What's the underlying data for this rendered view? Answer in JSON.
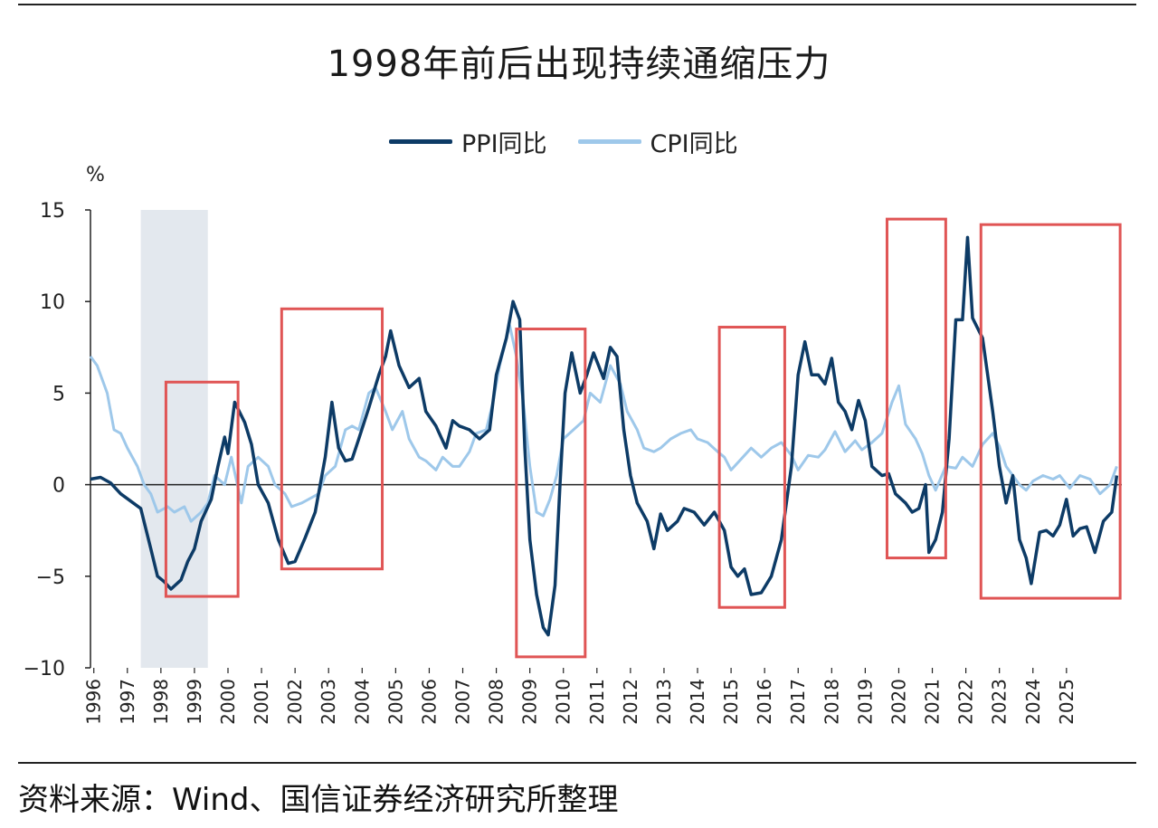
{
  "chart_data": {
    "type": "line",
    "title": "1998年前后出现持续通缩压力",
    "ylabel": "%",
    "ylim": [
      -10,
      15
    ],
    "yticks": [
      15,
      10,
      5,
      0,
      -5,
      -10
    ],
    "ytick_labels": [
      "15",
      "10",
      "5",
      "0",
      "−5",
      "−10"
    ],
    "x_range": [
      1996,
      2026
    ],
    "x_tick_labels": [
      "1996",
      "1997",
      "1998",
      "1999",
      "2000",
      "2001",
      "2002",
      "2003",
      "2004",
      "2005",
      "2006",
      "2007",
      "2008",
      "2009",
      "2010",
      "2011",
      "2012",
      "2013",
      "2014",
      "2015",
      "2016",
      "2017",
      "2018",
      "2019",
      "2020",
      "2021",
      "2022",
      "2023",
      "2024",
      "2025"
    ],
    "legend_position": "top-center",
    "series": [
      {
        "name": "PPI同比",
        "color": "#0d3b66",
        "points": [
          [
            1996.0,
            0.3
          ],
          [
            1996.3,
            0.4
          ],
          [
            1996.6,
            0.1
          ],
          [
            1996.9,
            -0.5
          ],
          [
            1997.2,
            -0.9
          ],
          [
            1997.5,
            -1.3
          ],
          [
            1997.8,
            -3.5
          ],
          [
            1998.0,
            -5.0
          ],
          [
            1998.2,
            -5.3
          ],
          [
            1998.4,
            -5.7
          ],
          [
            1998.7,
            -5.2
          ],
          [
            1998.9,
            -4.2
          ],
          [
            1999.1,
            -3.5
          ],
          [
            1999.3,
            -2.0
          ],
          [
            1999.6,
            -0.8
          ],
          [
            1999.8,
            1.0
          ],
          [
            2000.0,
            2.6
          ],
          [
            2000.1,
            1.7
          ],
          [
            2000.3,
            4.5
          ],
          [
            2000.6,
            3.4
          ],
          [
            2000.8,
            2.2
          ],
          [
            2001.0,
            0.0
          ],
          [
            2001.3,
            -1.0
          ],
          [
            2001.6,
            -3.0
          ],
          [
            2001.9,
            -4.3
          ],
          [
            2002.1,
            -4.2
          ],
          [
            2002.4,
            -2.9
          ],
          [
            2002.7,
            -1.5
          ],
          [
            2003.0,
            1.5
          ],
          [
            2003.2,
            4.5
          ],
          [
            2003.4,
            2.0
          ],
          [
            2003.6,
            1.3
          ],
          [
            2003.8,
            1.4
          ],
          [
            2004.0,
            2.5
          ],
          [
            2004.3,
            4.2
          ],
          [
            2004.6,
            6.0
          ],
          [
            2004.8,
            7.0
          ],
          [
            2004.95,
            8.4
          ],
          [
            2005.2,
            6.5
          ],
          [
            2005.5,
            5.3
          ],
          [
            2005.8,
            5.8
          ],
          [
            2006.0,
            4.0
          ],
          [
            2006.3,
            3.2
          ],
          [
            2006.6,
            2.0
          ],
          [
            2006.8,
            3.5
          ],
          [
            2007.0,
            3.2
          ],
          [
            2007.3,
            3.0
          ],
          [
            2007.6,
            2.5
          ],
          [
            2007.9,
            3.0
          ],
          [
            2008.1,
            6.0
          ],
          [
            2008.4,
            8.0
          ],
          [
            2008.6,
            10.0
          ],
          [
            2008.8,
            9.0
          ],
          [
            2008.95,
            2.0
          ],
          [
            2009.1,
            -3.0
          ],
          [
            2009.3,
            -6.0
          ],
          [
            2009.5,
            -7.8
          ],
          [
            2009.65,
            -8.2
          ],
          [
            2009.85,
            -5.5
          ],
          [
            2010.0,
            0.0
          ],
          [
            2010.15,
            5.0
          ],
          [
            2010.35,
            7.2
          ],
          [
            2010.6,
            5.0
          ],
          [
            2010.8,
            6.0
          ],
          [
            2011.0,
            7.2
          ],
          [
            2011.3,
            5.8
          ],
          [
            2011.5,
            7.5
          ],
          [
            2011.7,
            7.0
          ],
          [
            2011.9,
            3.0
          ],
          [
            2012.1,
            0.5
          ],
          [
            2012.3,
            -1.0
          ],
          [
            2012.6,
            -2.0
          ],
          [
            2012.8,
            -3.5
          ],
          [
            2013.0,
            -1.6
          ],
          [
            2013.2,
            -2.5
          ],
          [
            2013.5,
            -2.0
          ],
          [
            2013.7,
            -1.3
          ],
          [
            2014.0,
            -1.5
          ],
          [
            2014.3,
            -2.2
          ],
          [
            2014.6,
            -1.5
          ],
          [
            2014.9,
            -2.5
          ],
          [
            2015.1,
            -4.5
          ],
          [
            2015.3,
            -5.0
          ],
          [
            2015.5,
            -4.6
          ],
          [
            2015.7,
            -6.0
          ],
          [
            2016.0,
            -5.9
          ],
          [
            2016.3,
            -5.0
          ],
          [
            2016.6,
            -3.0
          ],
          [
            2016.9,
            1.0
          ],
          [
            2017.1,
            6.0
          ],
          [
            2017.3,
            7.8
          ],
          [
            2017.5,
            6.0
          ],
          [
            2017.7,
            6.0
          ],
          [
            2017.9,
            5.5
          ],
          [
            2018.1,
            6.9
          ],
          [
            2018.3,
            4.5
          ],
          [
            2018.5,
            4.0
          ],
          [
            2018.7,
            3.0
          ],
          [
            2018.9,
            4.6
          ],
          [
            2019.1,
            3.5
          ],
          [
            2019.3,
            1.0
          ],
          [
            2019.6,
            0.5
          ],
          [
            2019.8,
            0.6
          ],
          [
            2020.0,
            -0.5
          ],
          [
            2020.3,
            -1.0
          ],
          [
            2020.5,
            -1.5
          ],
          [
            2020.7,
            -1.3
          ],
          [
            2020.9,
            0.0
          ],
          [
            2021.0,
            -3.7
          ],
          [
            2021.2,
            -3.0
          ],
          [
            2021.4,
            -1.5
          ],
          [
            2021.6,
            2.5
          ],
          [
            2021.8,
            9.0
          ],
          [
            2022.0,
            9.0
          ],
          [
            2022.15,
            13.5
          ],
          [
            2022.3,
            9.1
          ],
          [
            2022.6,
            8.0
          ],
          [
            2022.9,
            4.0
          ],
          [
            2023.1,
            1.0
          ],
          [
            2023.3,
            -1.0
          ],
          [
            2023.5,
            0.5
          ],
          [
            2023.7,
            -3.0
          ],
          [
            2023.9,
            -4.0
          ],
          [
            2024.05,
            -5.4
          ],
          [
            2024.3,
            -2.6
          ],
          [
            2024.5,
            -2.5
          ],
          [
            2024.7,
            -2.8
          ],
          [
            2024.9,
            -2.2
          ],
          [
            2025.1,
            -0.8
          ],
          [
            2025.3,
            -2.8
          ],
          [
            2025.5,
            -2.4
          ],
          [
            2025.7,
            -2.3
          ],
          [
            2025.95,
            -3.7
          ],
          [
            2026.2,
            -2.0
          ],
          [
            2026.45,
            -1.5
          ],
          [
            2026.6,
            0.5
          ]
        ]
      },
      {
        "name": "CPI同比",
        "color": "#9ec8ea",
        "points": [
          [
            1996.0,
            7.0
          ],
          [
            1996.2,
            6.5
          ],
          [
            1996.5,
            5.0
          ],
          [
            1996.7,
            3.0
          ],
          [
            1996.9,
            2.8
          ],
          [
            1997.1,
            2.0
          ],
          [
            1997.4,
            1.0
          ],
          [
            1997.6,
            0.0
          ],
          [
            1997.8,
            -0.5
          ],
          [
            1998.0,
            -1.5
          ],
          [
            1998.3,
            -1.2
          ],
          [
            1998.5,
            -1.5
          ],
          [
            1998.8,
            -1.2
          ],
          [
            1999.0,
            -2.0
          ],
          [
            1999.3,
            -1.5
          ],
          [
            1999.5,
            -1.0
          ],
          [
            1999.7,
            0.5
          ],
          [
            2000.0,
            0.0
          ],
          [
            2000.2,
            1.5
          ],
          [
            2000.5,
            -1.0
          ],
          [
            2000.7,
            1.0
          ],
          [
            2001.0,
            1.5
          ],
          [
            2001.3,
            1.0
          ],
          [
            2001.5,
            0.0
          ],
          [
            2001.8,
            -0.5
          ],
          [
            2002.0,
            -1.2
          ],
          [
            2002.3,
            -1.0
          ],
          [
            2002.5,
            -0.8
          ],
          [
            2002.8,
            -0.5
          ],
          [
            2003.0,
            0.5
          ],
          [
            2003.3,
            1.0
          ],
          [
            2003.6,
            3.0
          ],
          [
            2003.8,
            3.2
          ],
          [
            2004.0,
            3.0
          ],
          [
            2004.3,
            5.0
          ],
          [
            2004.5,
            5.3
          ],
          [
            2004.8,
            4.0
          ],
          [
            2005.0,
            3.0
          ],
          [
            2005.3,
            4.0
          ],
          [
            2005.5,
            2.5
          ],
          [
            2005.8,
            1.5
          ],
          [
            2006.0,
            1.3
          ],
          [
            2006.3,
            0.8
          ],
          [
            2006.5,
            1.5
          ],
          [
            2006.8,
            1.0
          ],
          [
            2007.0,
            1.0
          ],
          [
            2007.3,
            1.8
          ],
          [
            2007.5,
            2.8
          ],
          [
            2007.8,
            3.0
          ],
          [
            2008.0,
            4.5
          ],
          [
            2008.2,
            6.5
          ],
          [
            2008.5,
            8.7
          ],
          [
            2008.7,
            7.0
          ],
          [
            2008.9,
            4.6
          ],
          [
            2009.1,
            1.0
          ],
          [
            2009.3,
            -1.5
          ],
          [
            2009.5,
            -1.7
          ],
          [
            2009.7,
            -0.8
          ],
          [
            2009.9,
            0.5
          ],
          [
            2010.1,
            2.5
          ],
          [
            2010.4,
            3.0
          ],
          [
            2010.7,
            3.5
          ],
          [
            2010.9,
            5.0
          ],
          [
            2011.2,
            4.5
          ],
          [
            2011.5,
            6.5
          ],
          [
            2011.8,
            5.5
          ],
          [
            2012.0,
            4.0
          ],
          [
            2012.3,
            3.0
          ],
          [
            2012.5,
            2.0
          ],
          [
            2012.8,
            1.8
          ],
          [
            2013.0,
            2.0
          ],
          [
            2013.3,
            2.5
          ],
          [
            2013.6,
            2.8
          ],
          [
            2013.9,
            3.0
          ],
          [
            2014.1,
            2.5
          ],
          [
            2014.4,
            2.3
          ],
          [
            2014.7,
            1.8
          ],
          [
            2014.9,
            1.5
          ],
          [
            2015.1,
            0.8
          ],
          [
            2015.4,
            1.4
          ],
          [
            2015.7,
            2.0
          ],
          [
            2016.0,
            1.5
          ],
          [
            2016.3,
            2.0
          ],
          [
            2016.6,
            2.3
          ],
          [
            2016.9,
            1.6
          ],
          [
            2017.1,
            0.8
          ],
          [
            2017.4,
            1.6
          ],
          [
            2017.7,
            1.5
          ],
          [
            2017.9,
            1.9
          ],
          [
            2018.2,
            2.9
          ],
          [
            2018.5,
            1.8
          ],
          [
            2018.8,
            2.4
          ],
          [
            2019.0,
            1.9
          ],
          [
            2019.3,
            2.3
          ],
          [
            2019.6,
            2.8
          ],
          [
            2019.9,
            4.5
          ],
          [
            2020.1,
            5.4
          ],
          [
            2020.3,
            3.3
          ],
          [
            2020.6,
            2.5
          ],
          [
            2020.8,
            1.7
          ],
          [
            2021.0,
            0.5
          ],
          [
            2021.2,
            -0.3
          ],
          [
            2021.5,
            1.0
          ],
          [
            2021.8,
            0.9
          ],
          [
            2022.0,
            1.5
          ],
          [
            2022.3,
            1.0
          ],
          [
            2022.6,
            2.2
          ],
          [
            2022.9,
            2.8
          ],
          [
            2023.1,
            2.1
          ],
          [
            2023.3,
            1.0
          ],
          [
            2023.5,
            0.5
          ],
          [
            2023.7,
            0.0
          ],
          [
            2023.9,
            -0.3
          ],
          [
            2024.1,
            0.2
          ],
          [
            2024.4,
            0.5
          ],
          [
            2024.7,
            0.3
          ],
          [
            2024.9,
            0.5
          ],
          [
            2025.2,
            -0.2
          ],
          [
            2025.5,
            0.5
          ],
          [
            2025.8,
            0.3
          ],
          [
            2026.1,
            -0.5
          ],
          [
            2026.4,
            0.0
          ],
          [
            2026.6,
            1.0
          ]
        ]
      }
    ],
    "shaded_region": {
      "x_start": 1997.5,
      "x_end": 1999.5
    },
    "highlight_boxes": [
      {
        "x0": 1998.25,
        "x1": 2000.4,
        "y0": -6.1,
        "y1": 5.6
      },
      {
        "x0": 2001.7,
        "x1": 2004.7,
        "y0": -4.6,
        "y1": 9.6
      },
      {
        "x0": 2008.7,
        "x1": 2010.75,
        "y0": -9.4,
        "y1": 8.5
      },
      {
        "x0": 2014.75,
        "x1": 2016.7,
        "y0": -6.7,
        "y1": 8.6
      },
      {
        "x0": 2019.75,
        "x1": 2021.5,
        "y0": -4.0,
        "y1": 14.5
      },
      {
        "x0": 2022.55,
        "x1": 2026.7,
        "y0": -6.2,
        "y1": 14.2
      }
    ]
  },
  "legend": {
    "items": [
      {
        "label": "PPI同比",
        "color": "#0d3b66"
      },
      {
        "label": "CPI同比",
        "color": "#9ec8ea"
      }
    ]
  },
  "source": "资料来源：Wind、国信证券经济研究所整理"
}
